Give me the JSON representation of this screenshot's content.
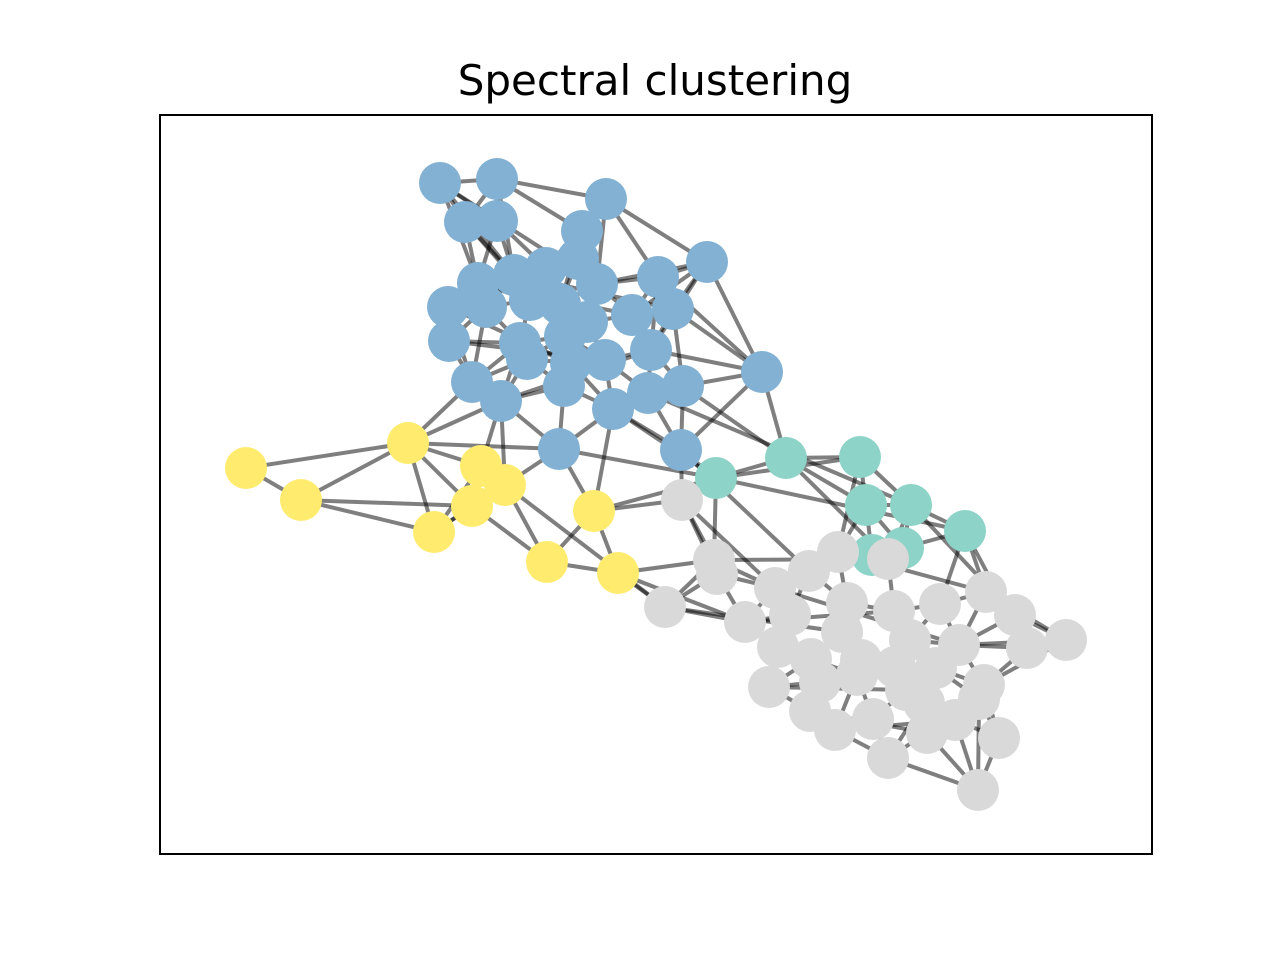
{
  "title": "Spectral clustering",
  "palette": {
    "cluster-blue": "#82b1d3",
    "cluster-yellow": "#ffec6e",
    "cluster-teal": "#8dd3c7",
    "cluster-gray": "#d9d9d9",
    "edge": "#000000",
    "frame": "#000000"
  },
  "graph": {
    "clusters": [
      "cluster-blue",
      "cluster-yellow",
      "cluster-teal",
      "cluster-gray"
    ],
    "note": "none"
  }
}
